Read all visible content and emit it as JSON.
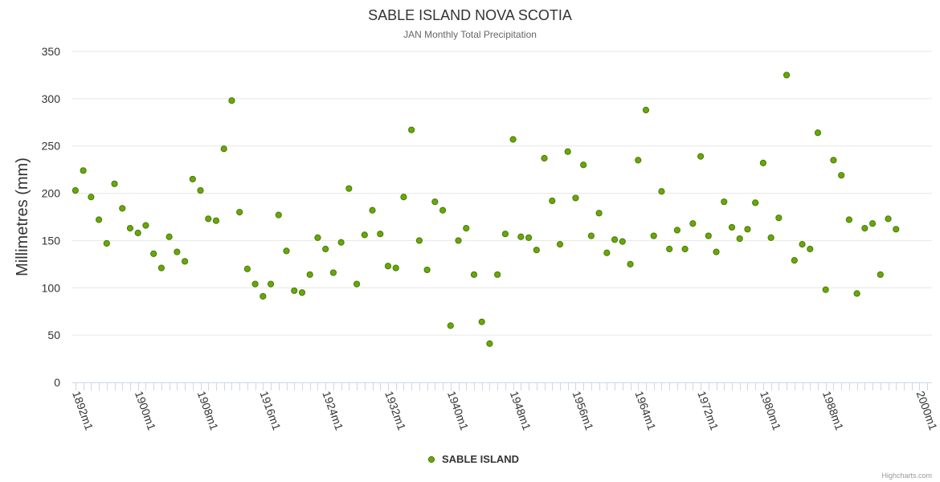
{
  "chart_data": {
    "type": "scatter",
    "title": "SABLE ISLAND NOVA SCOTIA",
    "subtitle": "JAN Monthly Total Precipitation",
    "ylabel": "Millimetres (mm)",
    "xlabel": "",
    "ylim": [
      0,
      350
    ],
    "yticks": [
      "0",
      "50",
      "100",
      "150",
      "200",
      "250",
      "300",
      "350"
    ],
    "xticks": [
      {
        "year": 1892,
        "label": "1892m1"
      },
      {
        "year": 1900,
        "label": "1900m1"
      },
      {
        "year": 1908,
        "label": "1908m1"
      },
      {
        "year": 1916,
        "label": "1916m1"
      },
      {
        "year": 1924,
        "label": "1924m1"
      },
      {
        "year": 1932,
        "label": "1932m1"
      },
      {
        "year": 1940,
        "label": "1940m1"
      },
      {
        "year": 1948,
        "label": "1948m1"
      },
      {
        "year": 1956,
        "label": "1956m1"
      },
      {
        "year": 1964,
        "label": "1964m1"
      },
      {
        "year": 1972,
        "label": "1972m1"
      },
      {
        "year": 1980,
        "label": "1980m1"
      },
      {
        "year": 1988,
        "label": "1988m1"
      },
      {
        "year": 2000,
        "label": "2000m1"
      }
    ],
    "xlim": [
      1891.6,
      2001.6
    ],
    "series": [
      {
        "name": "SABLE ISLAND",
        "color": "#68a70a",
        "stroke": "#4a7a05",
        "x": [
          1892,
          1893,
          1894,
          1895,
          1896,
          1897,
          1898,
          1899,
          1900,
          1901,
          1902,
          1903,
          1904,
          1905,
          1906,
          1907,
          1908,
          1909,
          1910,
          1911,
          1912,
          1913,
          1914,
          1915,
          1916,
          1917,
          1918,
          1919,
          1920,
          1921,
          1922,
          1923,
          1924,
          1925,
          1926,
          1927,
          1928,
          1929,
          1930,
          1931,
          1932,
          1933,
          1934,
          1935,
          1936,
          1937,
          1938,
          1939,
          1940,
          1941,
          1942,
          1943,
          1944,
          1945,
          1946,
          1947,
          1948,
          1949,
          1950,
          1951,
          1952,
          1953,
          1954,
          1955,
          1956,
          1957,
          1958,
          1959,
          1960,
          1961,
          1962,
          1963,
          1964,
          1965,
          1966,
          1967,
          1968,
          1969,
          1970,
          1971,
          1972,
          1973,
          1974,
          1975,
          1976,
          1977,
          1978,
          1979,
          1980,
          1981,
          1982,
          1983,
          1984,
          1985,
          1986,
          1987,
          1988,
          1989,
          1990,
          1991,
          1992,
          1993,
          1994,
          1995,
          1996,
          1997
        ],
        "values": [
          203,
          224,
          196,
          172,
          147,
          210,
          184,
          163,
          158,
          166,
          136,
          121,
          154,
          138,
          128,
          215,
          203,
          173,
          171,
          247,
          298,
          180,
          120,
          104,
          91,
          104,
          177,
          139,
          97,
          95,
          114,
          153,
          141,
          116,
          148,
          205,
          104,
          156,
          182,
          157,
          123,
          121,
          196,
          267,
          150,
          119,
          191,
          182,
          60,
          150,
          163,
          114,
          64,
          41,
          114,
          157,
          257,
          154,
          153,
          140,
          237,
          192,
          146,
          244,
          195,
          230,
          155,
          179,
          137,
          151,
          149,
          125,
          235,
          288,
          155,
          202,
          141,
          161,
          141,
          168,
          239,
          155,
          138,
          191,
          164,
          152,
          162,
          190,
          232,
          153,
          174,
          325,
          129,
          146,
          141,
          264,
          98,
          235,
          219,
          172,
          94,
          163,
          168,
          114,
          173,
          162
        ]
      }
    ],
    "legend_position": "bottom-center",
    "credits": "Highcharts.com"
  }
}
